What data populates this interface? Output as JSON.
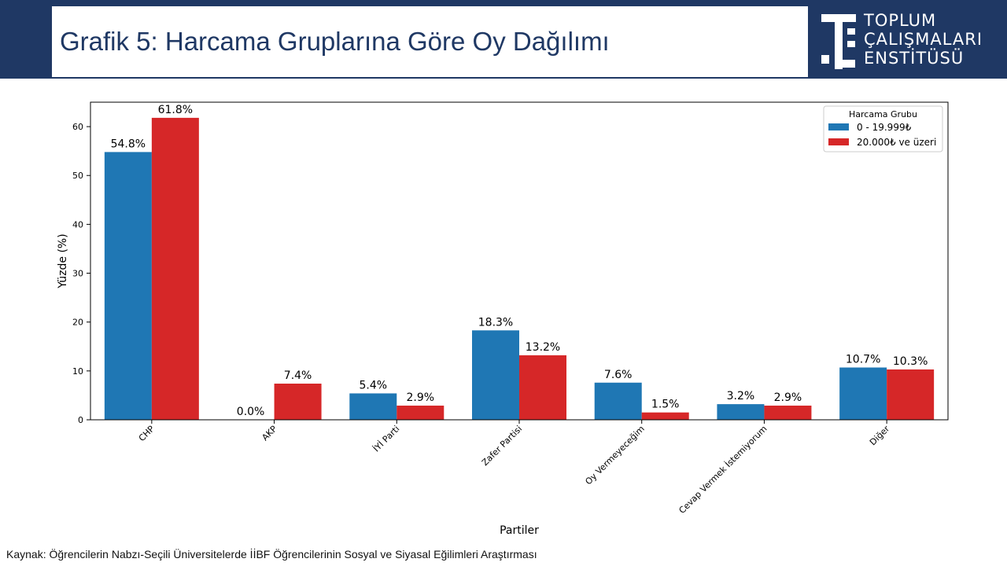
{
  "header": {
    "title": "Grafik 5: Harcama Gruplarına Göre Oy Dağılımı",
    "logo_lines": [
      "TOPLUM",
      "ÇALIŞMALARI",
      "ENSTİTÜSÜ"
    ],
    "colors": {
      "band": "#1f3864",
      "title": "#1f3864"
    }
  },
  "chart_data": {
    "type": "bar",
    "categories": [
      "CHP",
      "AKP",
      "İYİ Parti",
      "Zafer Partisi",
      "Oy Vermeyeceğim",
      "Cevap Vermek İstemiyorum",
      "Diğer"
    ],
    "series": [
      {
        "name": "0 - 19.999₺",
        "color": "#1f77b4",
        "values": [
          54.8,
          0.0,
          5.4,
          18.3,
          7.6,
          3.2,
          10.7
        ],
        "labels": [
          "54.8%",
          "0.0%",
          "5.4%",
          "18.3%",
          "7.6%",
          "3.2%",
          "10.7%"
        ]
      },
      {
        "name": "20.000₺ ve üzeri",
        "color": "#d62728",
        "values": [
          61.8,
          7.4,
          2.9,
          13.2,
          1.5,
          2.9,
          10.3
        ],
        "labels": [
          "61.8%",
          "7.4%",
          "2.9%",
          "13.2%",
          "1.5%",
          "2.9%",
          "10.3%"
        ]
      }
    ],
    "xlabel": "Partiler",
    "ylabel": "Yüzde (%)",
    "ylim": [
      0,
      65
    ],
    "yticks": [
      0,
      10,
      20,
      30,
      40,
      50,
      60
    ],
    "legend_title": "Harcama Grubu",
    "legend_position": "top-right",
    "grid": false
  },
  "footer": {
    "source": "Kaynak: Öğrencilerin Nabzı-Seçili Üniversitelerde İİBF Öğrencilerinin Sosyal ve Siyasal Eğilimleri Araştırması"
  }
}
